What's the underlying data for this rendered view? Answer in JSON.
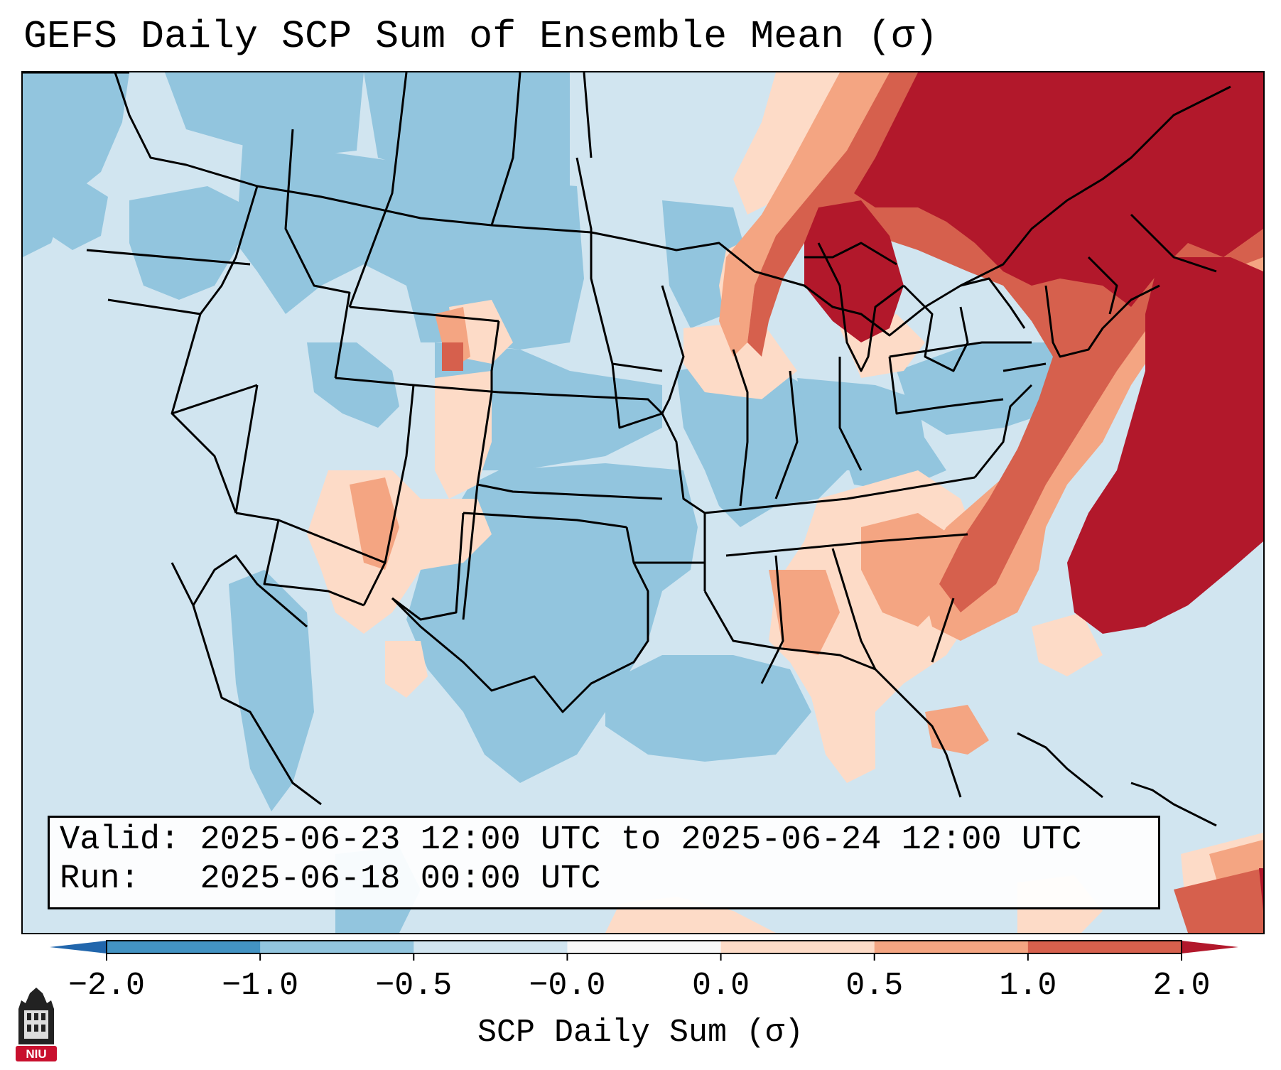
{
  "title": "GEFS Daily SCP Sum of Ensemble Mean (σ)",
  "info": {
    "valid_label": "Valid:",
    "valid_value": "2025-06-23 12:00 UTC to 2025-06-24 12:00 UTC",
    "run_label": "Run:",
    "run_value": "2025-06-18 00:00 UTC"
  },
  "colorbar": {
    "label": "SCP Daily Sum (σ)",
    "ticks": [
      "−2.0",
      "−1.0",
      "−0.5",
      "−0.0",
      "0.0",
      "0.5",
      "1.0",
      "2.0"
    ],
    "bin_colors": [
      "#4393c3",
      "#92c5de",
      "#d1e5f0",
      "#f7f7f7",
      "#fddbc7",
      "#f4a582",
      "#d6604d"
    ],
    "extend_low_color": "#2166ac",
    "extend_high_color": "#b2182b"
  },
  "logo": {
    "text": "NIU",
    "color": "#c8102e"
  }
}
